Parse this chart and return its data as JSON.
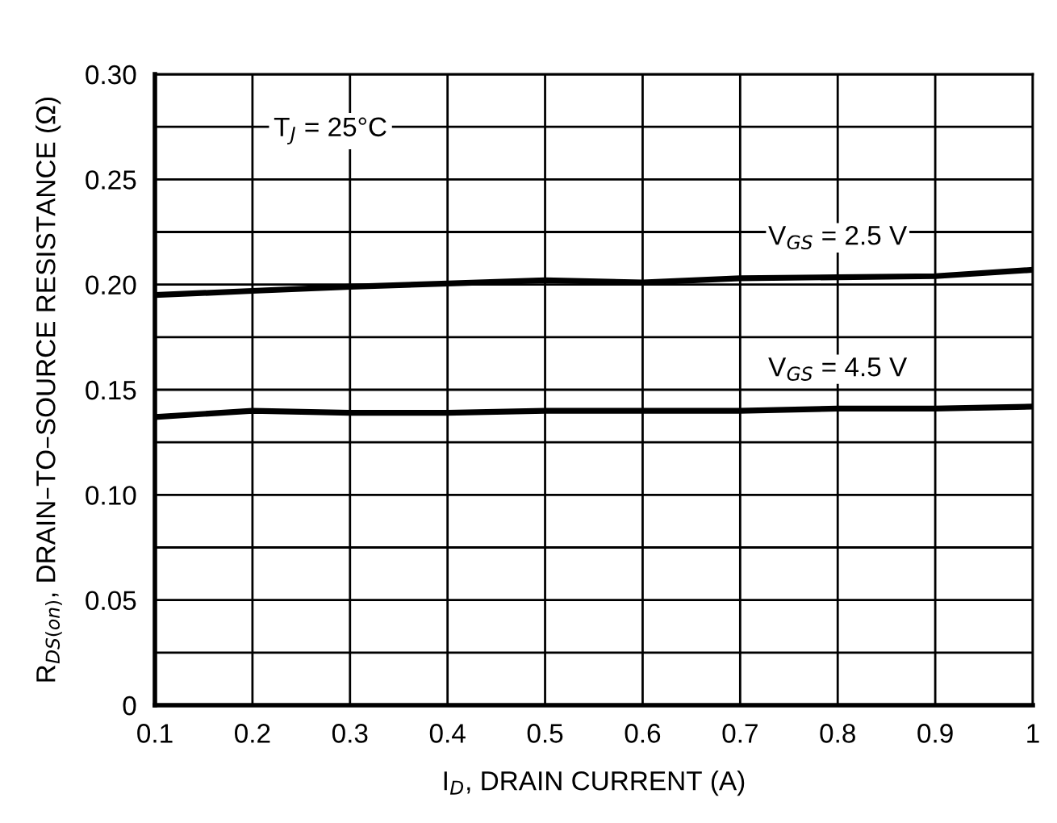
{
  "chart_data": {
    "type": "line",
    "xlabel": "I$_{D}$, DRAIN CURRENT (A)",
    "ylabel": "R$_{DS(on)}$, DRAIN–TO–SOURCE RESISTANCE (Ω)",
    "x": [
      0.1,
      0.2,
      0.3,
      0.4,
      0.5,
      0.6,
      0.7,
      0.8,
      0.9,
      1.0
    ],
    "series": [
      {
        "name": "V$_{GS}$ = 2.5 V",
        "color": "#000000",
        "values": [
          0.195,
          0.197,
          0.199,
          0.2005,
          0.202,
          0.201,
          0.203,
          0.2035,
          0.204,
          0.207
        ]
      },
      {
        "name": "V$_{GS}$ = 4.5 V",
        "color": "#000000",
        "values": [
          0.137,
          0.14,
          0.139,
          0.139,
          0.14,
          0.14,
          0.14,
          0.141,
          0.141,
          0.142
        ]
      }
    ],
    "annotations": [
      "T$_{J}$ = 25°C"
    ],
    "xlim": [
      0.1,
      1.0
    ],
    "xticks": [
      0.1,
      0.2,
      0.3,
      0.4,
      0.5,
      0.6,
      0.7,
      0.8,
      0.9,
      {
        "value": 1.0,
        "label": "1"
      }
    ],
    "ylim": [
      0,
      0.3
    ],
    "yticks": [
      {
        "value": 0,
        "label": "0"
      },
      {
        "value": 0.025,
        "label": null
      },
      0.05,
      {
        "value": 0.075,
        "label": null
      },
      {
        "value": 0.1,
        "label": "0.10"
      },
      {
        "value": 0.125,
        "label": null
      },
      0.15,
      {
        "value": 0.175,
        "label": null
      },
      {
        "value": 0.2,
        "label": "0.20"
      },
      {
        "value": 0.225,
        "label": null
      },
      0.25,
      {
        "value": 0.275,
        "label": null
      },
      {
        "value": 0.3,
        "label": "0.30"
      }
    ],
    "grid": true,
    "legend": false,
    "line_style": "solid"
  }
}
